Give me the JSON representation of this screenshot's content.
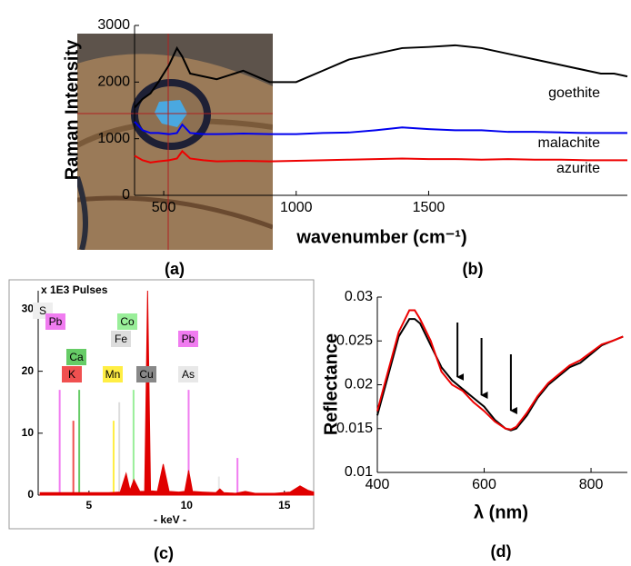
{
  "panel_labels": [
    "(a)",
    "(b)",
    "(c)",
    "(d)"
  ],
  "chart_data": [
    {
      "type": "line",
      "ylabel": "Raman Intensity",
      "xlabel": "wavenumber (cm⁻¹)",
      "xlim": [
        390,
        2250
      ],
      "xticks": [
        500,
        1000,
        1500
      ],
      "ylim": [
        0,
        3000
      ],
      "yticks": [
        0,
        1000,
        2000,
        3000
      ],
      "x": [
        390,
        420,
        450,
        480,
        520,
        550,
        570,
        600,
        650,
        700,
        800,
        900,
        1000,
        1100,
        1200,
        1300,
        1400,
        1500,
        1600,
        1700,
        1800,
        1900,
        2000,
        2100,
        2150,
        2200,
        2250
      ],
      "series": [
        {
          "name": "goethite",
          "color": "#000000",
          "values": [
            1550,
            1700,
            1800,
            2000,
            2300,
            2600,
            2450,
            2150,
            2100,
            2050,
            2200,
            2000,
            2000,
            2200,
            2400,
            2500,
            2600,
            2620,
            2650,
            2600,
            2500,
            2400,
            2300,
            2200,
            2150,
            2150,
            2100
          ]
        },
        {
          "name": "malachite",
          "color": "#0000ee",
          "values": [
            1300,
            1150,
            1100,
            1100,
            1080,
            1100,
            1250,
            1100,
            1080,
            1080,
            1090,
            1080,
            1080,
            1100,
            1110,
            1150,
            1200,
            1170,
            1150,
            1150,
            1120,
            1120,
            1110,
            1100,
            1100,
            1100,
            1100
          ]
        },
        {
          "name": "azurite",
          "color": "#ee0000",
          "values": [
            700,
            620,
            580,
            600,
            620,
            650,
            780,
            650,
            620,
            600,
            610,
            600,
            610,
            620,
            630,
            640,
            650,
            640,
            640,
            630,
            640,
            630,
            630,
            620,
            620,
            620,
            620
          ]
        }
      ]
    },
    {
      "type": "spectrum",
      "title": "x 1E3 Pulses",
      "xlabel": "- keV -",
      "xlim": [
        2.4,
        16.5
      ],
      "xticks": [
        5,
        10,
        15
      ],
      "ylim": [
        0,
        33
      ],
      "yticks": [
        0,
        10,
        20,
        30
      ],
      "color": "#e00000",
      "x": [
        2.5,
        3,
        4,
        5,
        6,
        6.6,
        6.9,
        7.1,
        7.3,
        7.6,
        7.85,
        8.0,
        8.15,
        8.5,
        8.8,
        9.1,
        9.6,
        9.9,
        10.1,
        10.3,
        10.8,
        11.5,
        11.7,
        11.9,
        12.5,
        13,
        13.5,
        14.5,
        15.3,
        15.8,
        16.2,
        16.5
      ],
      "values": [
        0.4,
        0.4,
        0.4,
        0.4,
        0.4,
        0.5,
        3.5,
        0.8,
        2.5,
        0.6,
        0.6,
        33,
        0.7,
        0.6,
        5,
        0.6,
        0.5,
        0.6,
        4,
        0.6,
        0.5,
        0.4,
        1,
        0.4,
        0.3,
        0.6,
        0.3,
        0.3,
        0.5,
        1.5,
        0.8,
        0.5
      ],
      "elements": [
        {
          "label": "S",
          "color": "#eeeeee"
        },
        {
          "label": "Pb",
          "color": "#f07cf0",
          "energies": [
            3.5,
            10.1
          ],
          "heights": [
            17,
            17
          ]
        },
        {
          "label": "Ca",
          "color": "#66cc66",
          "energies": [
            4.5
          ],
          "heights": [
            17
          ]
        },
        {
          "label": "K",
          "color": "#f05050",
          "energies": [
            4.2
          ],
          "heights": [
            12
          ]
        },
        {
          "label": "Co",
          "color": "#99ee99",
          "energies": [
            7.28
          ],
          "heights": [
            17
          ]
        },
        {
          "label": "Fe",
          "color": "#dddddd",
          "energies": [
            6.55
          ],
          "heights": [
            15
          ]
        },
        {
          "label": "Mn",
          "color": "#ffee44",
          "energies": [
            6.26
          ],
          "heights": [
            12
          ]
        },
        {
          "label": "Cu",
          "color": "#888888",
          "energies": [
            8.0
          ],
          "heights": [
            12
          ]
        },
        {
          "label": "Pb",
          "color": "#f07cf0",
          "energies": [
            12.6
          ],
          "heights": [
            6
          ]
        },
        {
          "label": "As",
          "color": "#e8e8e8",
          "energies": [
            11.65
          ],
          "heights": [
            3
          ]
        }
      ]
    },
    {
      "type": "line",
      "ylabel": "Reflectance",
      "xlabel": "λ (nm)",
      "xlim": [
        400,
        868
      ],
      "xticks": [
        400,
        600,
        800
      ],
      "ylim": [
        0.01,
        0.03
      ],
      "yticks": [
        0.01,
        0.015,
        0.02,
        0.025,
        0.03
      ],
      "arrows_x": [
        550,
        595,
        650
      ],
      "x": [
        400,
        420,
        440,
        460,
        470,
        480,
        500,
        520,
        540,
        560,
        580,
        600,
        620,
        640,
        650,
        660,
        680,
        700,
        720,
        740,
        760,
        780,
        800,
        820,
        840,
        860
      ],
      "series": [
        {
          "color": "#000000",
          "values": [
            0.0165,
            0.021,
            0.0255,
            0.0275,
            0.0275,
            0.027,
            0.0245,
            0.022,
            0.0205,
            0.0195,
            0.0185,
            0.0175,
            0.016,
            0.015,
            0.0148,
            0.015,
            0.0165,
            0.0185,
            0.02,
            0.021,
            0.022,
            0.0225,
            0.0235,
            0.0245,
            0.025,
            0.0255
          ]
        },
        {
          "color": "#ee0000",
          "values": [
            0.017,
            0.0215,
            0.026,
            0.0285,
            0.0285,
            0.0275,
            0.025,
            0.0215,
            0.02,
            0.0193,
            0.018,
            0.017,
            0.0158,
            0.015,
            0.0149,
            0.0152,
            0.0168,
            0.0187,
            0.0202,
            0.0212,
            0.0222,
            0.0228,
            0.0237,
            0.0246,
            0.025,
            0.0255
          ]
        }
      ]
    }
  ]
}
